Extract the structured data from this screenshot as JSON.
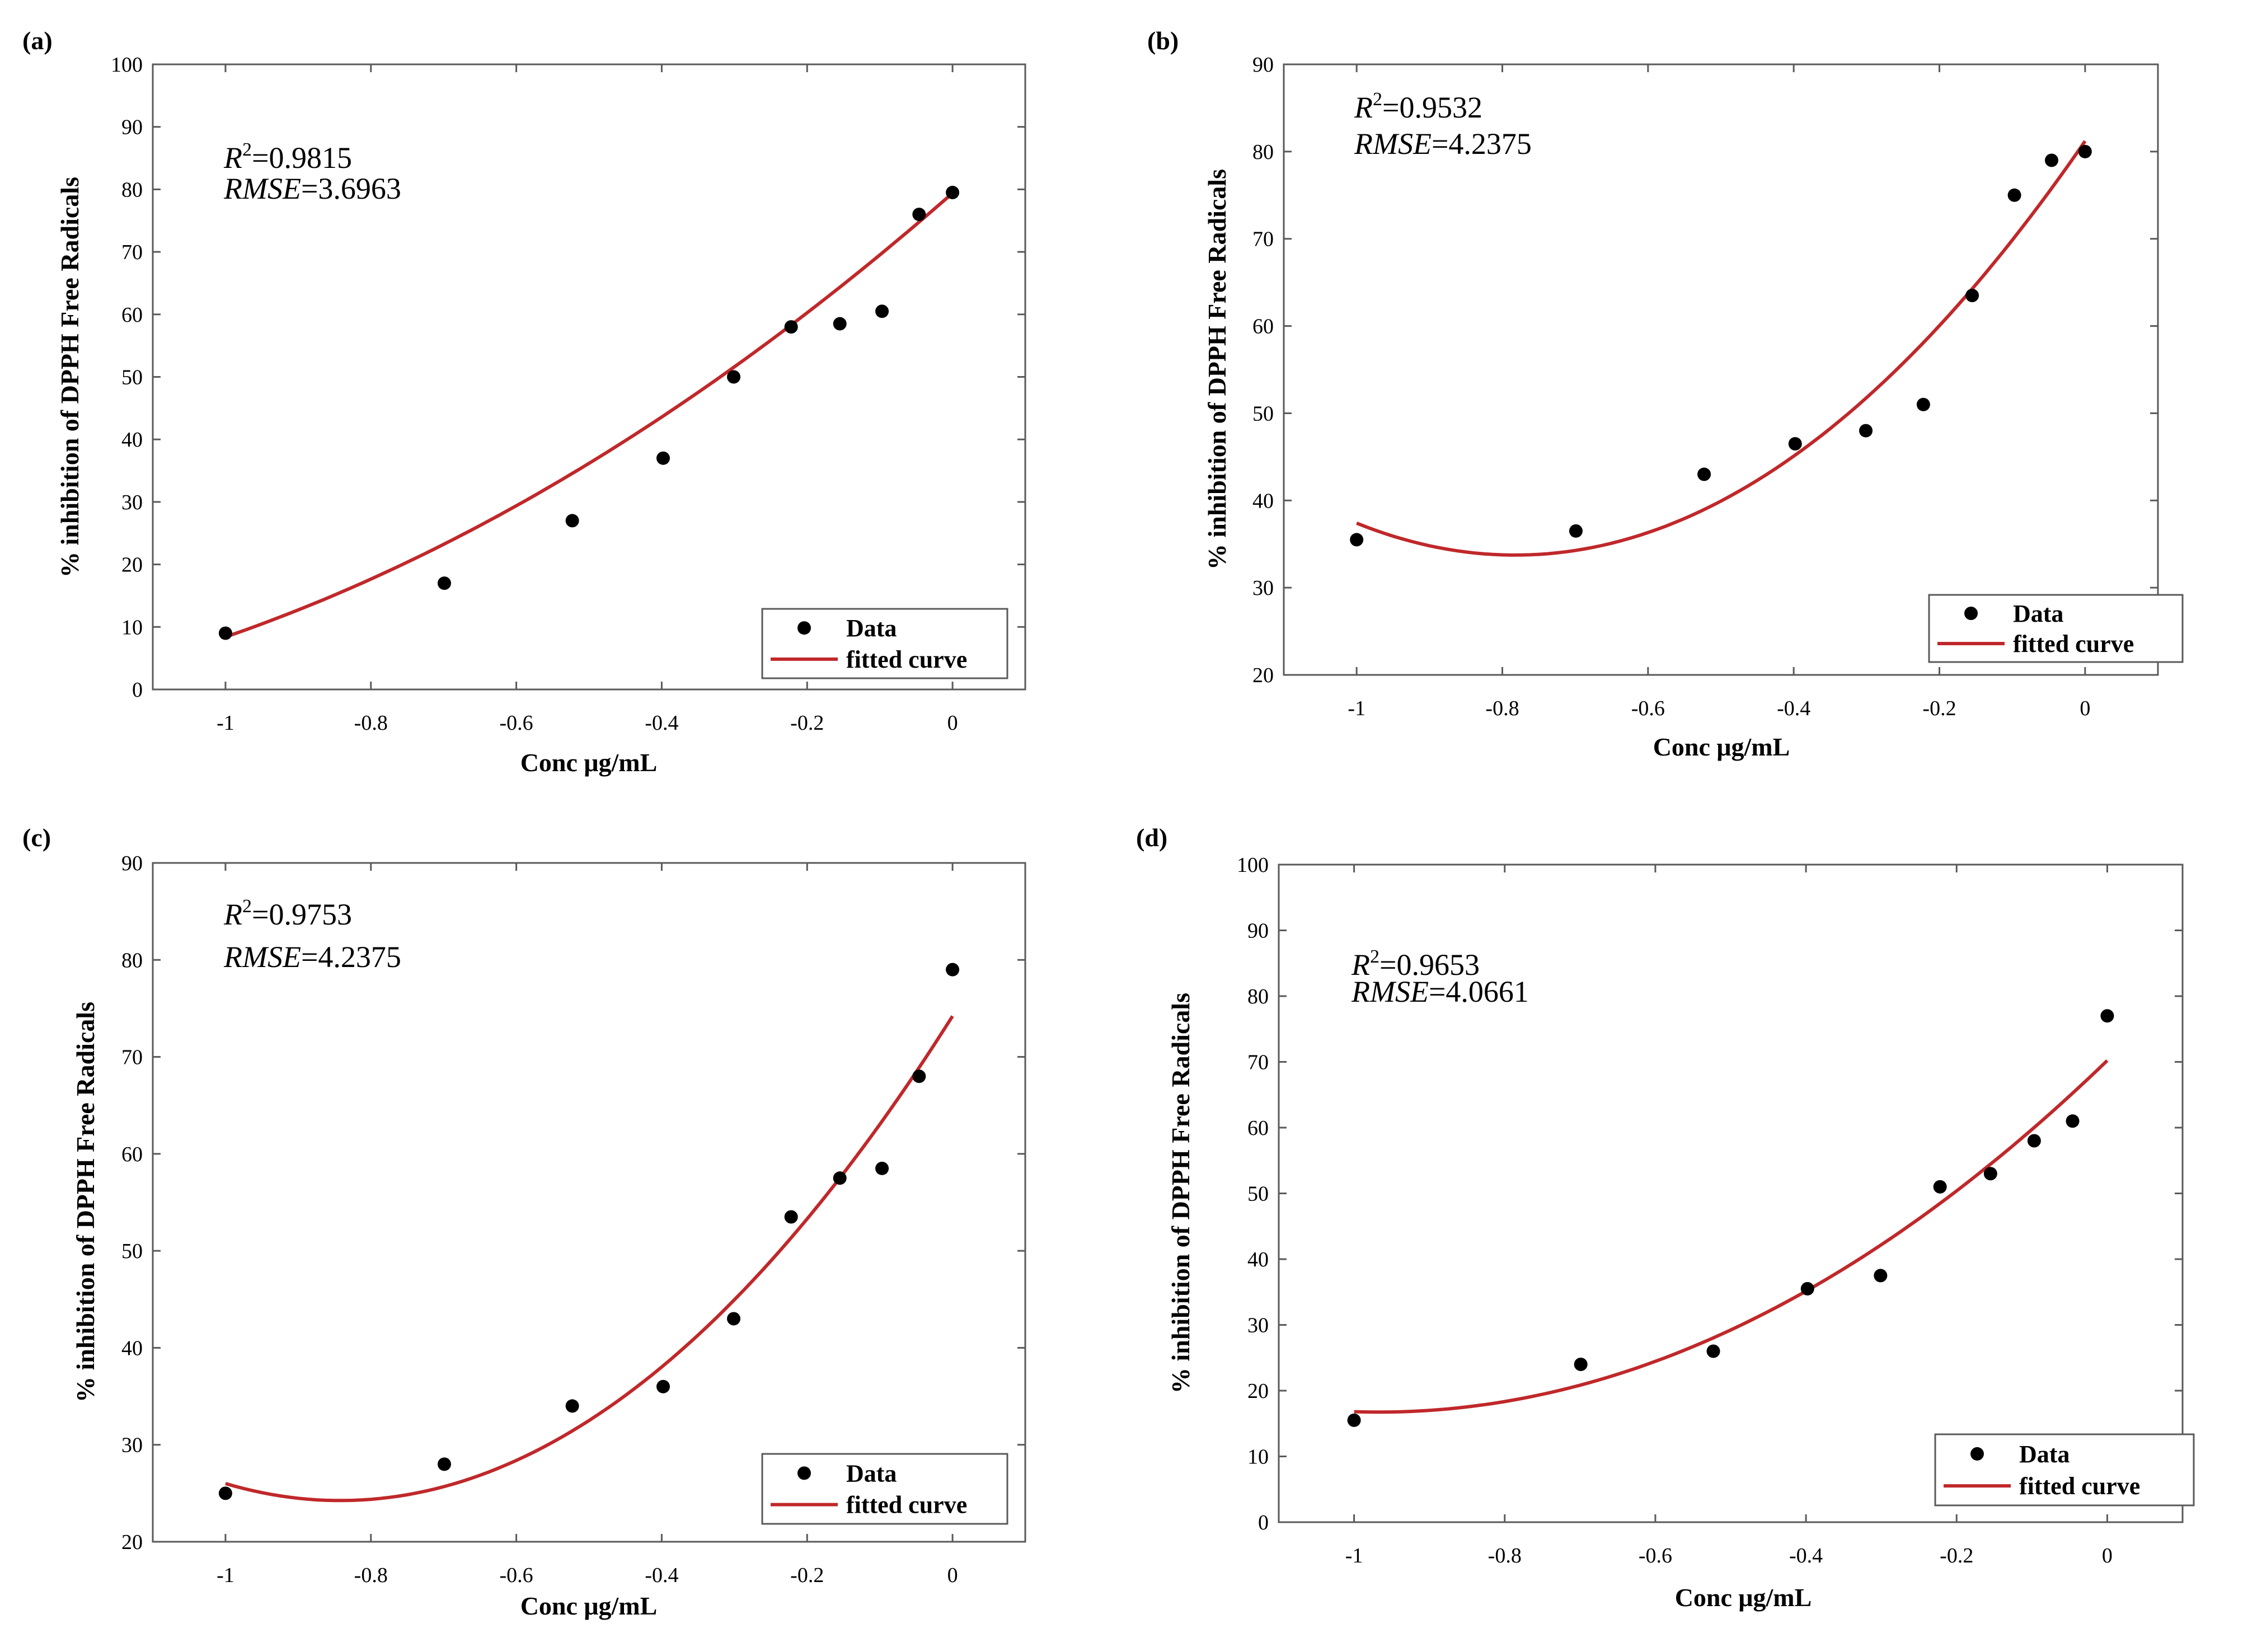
{
  "figure": {
    "x_label": "Conc μg/mL",
    "y_label": "% inhibition of DPPH Free Radicals",
    "legend_data": "Data",
    "legend_fit": "fitted curve",
    "colors": {
      "curve": "#c0282a",
      "points": "#000000",
      "axes": "#5a5a5a"
    }
  },
  "chart_data": [
    {
      "panel": "(a)",
      "type": "scatter",
      "title": "",
      "xlabel": "Conc μg/mL",
      "ylabel": "% inhibition of DPPH Free Radicals",
      "xlim": [
        -1.1,
        0.1
      ],
      "ylim": [
        0,
        100
      ],
      "xticks": [
        -1,
        -0.8,
        -0.6,
        -0.4,
        -0.2,
        0
      ],
      "xtick_labels": [
        "-1",
        "-0.8",
        "-0.6",
        "-0.4",
        "-0.2",
        "0"
      ],
      "yticks": [
        0,
        10,
        20,
        30,
        40,
        50,
        60,
        70,
        80,
        90,
        100
      ],
      "ytick_labels": [
        "0",
        "10",
        "20",
        "30",
        "40",
        "50",
        "60",
        "70",
        "80",
        "90",
        "100"
      ],
      "annotation": {
        "r2_symbol": "R",
        "r2_exp": "2",
        "r2_value": "=0.9815",
        "rmse_name": "RMSE",
        "rmse_value": "=3.6963"
      },
      "series": [
        {
          "name": "Data",
          "x": [
            -1,
            -0.699,
            -0.523,
            -0.398,
            -0.301,
            -0.222,
            -0.155,
            -0.097,
            -0.046,
            0
          ],
          "y": [
            9,
            17,
            27,
            37,
            50,
            58,
            58.5,
            60.5,
            76,
            79.5
          ]
        },
        {
          "name": "fitted curve",
          "fit": "quadratic",
          "coeffs": [
            79.4,
            101.9,
            30.9
          ],
          "xrange": [
            -1,
            0
          ]
        }
      ]
    },
    {
      "panel": "(b)",
      "type": "scatter",
      "title": "",
      "xlabel": "Conc μg/mL",
      "ylabel": "% inhibition of DPPH Free Radicals",
      "xlim": [
        -1.1,
        0.1
      ],
      "ylim": [
        20,
        90
      ],
      "xticks": [
        -1,
        -0.8,
        -0.6,
        -0.4,
        -0.2,
        0
      ],
      "xtick_labels": [
        "-1",
        "-0.8",
        "-0.6",
        "-0.4",
        "-0.2",
        "0"
      ],
      "yticks": [
        20,
        30,
        40,
        50,
        60,
        70,
        80,
        90
      ],
      "ytick_labels": [
        "20",
        "30",
        "40",
        "50",
        "60",
        "70",
        "80",
        "90"
      ],
      "annotation": {
        "r2_symbol": "R",
        "r2_exp": "2",
        "r2_value": "=0.9532",
        "rmse_name": "RMSE",
        "rmse_value": "=4.2375"
      },
      "series": [
        {
          "name": "Data",
          "x": [
            -1,
            -0.699,
            -0.523,
            -0.398,
            -0.301,
            -0.222,
            -0.155,
            -0.097,
            -0.046,
            0
          ],
          "y": [
            35.5,
            36.5,
            43,
            46.5,
            48,
            51,
            63.5,
            75,
            79,
            80
          ]
        },
        {
          "name": "fitted curve",
          "fit": "quadratic",
          "coeffs": [
            81.2,
            121.3,
            77.5
          ],
          "xrange": [
            -1,
            0
          ]
        }
      ]
    },
    {
      "panel": "(c)",
      "type": "scatter",
      "title": "",
      "xlabel": "Conc μg/mL",
      "ylabel": "% inhibition of DPPH Free Radicals",
      "xlim": [
        -1.1,
        0.1
      ],
      "ylim": [
        20,
        90
      ],
      "xticks": [
        -1,
        -0.8,
        -0.6,
        -0.4,
        -0.2,
        0
      ],
      "xtick_labels": [
        "-1",
        "-0.8",
        "-0.6",
        "-0.4",
        "-0.2",
        "0"
      ],
      "yticks": [
        20,
        30,
        40,
        50,
        60,
        70,
        80,
        90
      ],
      "ytick_labels": [
        "20",
        "30",
        "40",
        "50",
        "60",
        "70",
        "80",
        "90"
      ],
      "annotation": {
        "r2_symbol": "R",
        "r2_exp": "2",
        "r2_value": "=0.9753",
        "rmse_name": "RMSE",
        "rmse_value": "=4.2375"
      },
      "series": [
        {
          "name": "Data",
          "x": [
            -1,
            -0.699,
            -0.523,
            -0.398,
            -0.301,
            -0.222,
            -0.155,
            -0.097,
            -0.046,
            0
          ],
          "y": [
            25,
            28,
            34,
            36,
            43,
            53.5,
            57.5,
            58.5,
            68,
            79
          ]
        },
        {
          "name": "fitted curve",
          "fit": "quadratic",
          "coeffs": [
            74.2,
            118.6,
            70.4
          ],
          "xrange": [
            -1,
            0
          ]
        }
      ]
    },
    {
      "panel": "(d)",
      "type": "scatter",
      "title": "",
      "xlabel": "Conc μg/mL",
      "ylabel": "% inhibition of DPPH Free Radicals",
      "xlim": [
        -1.1,
        0.1
      ],
      "ylim": [
        0,
        100
      ],
      "xticks": [
        -1,
        -0.8,
        -0.6,
        -0.4,
        -0.2,
        0
      ],
      "xtick_labels": [
        "-1",
        "-0.8",
        "-0.6",
        "-0.4",
        "-0.2",
        "0"
      ],
      "yticks": [
        0,
        10,
        20,
        30,
        40,
        50,
        60,
        70,
        80,
        90,
        100
      ],
      "ytick_labels": [
        "0",
        "10",
        "20",
        "30",
        "40",
        "50",
        "60",
        "70",
        "80",
        "90",
        "100"
      ],
      "annotation": {
        "r2_symbol": "R",
        "r2_exp": "2",
        "r2_value": "=0.9653",
        "rmse_name": "RMSE",
        "rmse_value": "=4.0661"
      },
      "series": [
        {
          "name": "Data",
          "x": [
            -1,
            -0.699,
            -0.523,
            -0.398,
            -0.301,
            -0.222,
            -0.155,
            -0.097,
            -0.046,
            0
          ],
          "y": [
            15.5,
            24,
            26,
            35.5,
            37.5,
            51,
            53,
            58,
            61,
            77
          ]
        },
        {
          "name": "fitted curve",
          "fit": "quadratic",
          "coeffs": [
            70.2,
            110.5,
            57.1
          ],
          "xrange": [
            -1,
            0
          ]
        }
      ]
    }
  ]
}
